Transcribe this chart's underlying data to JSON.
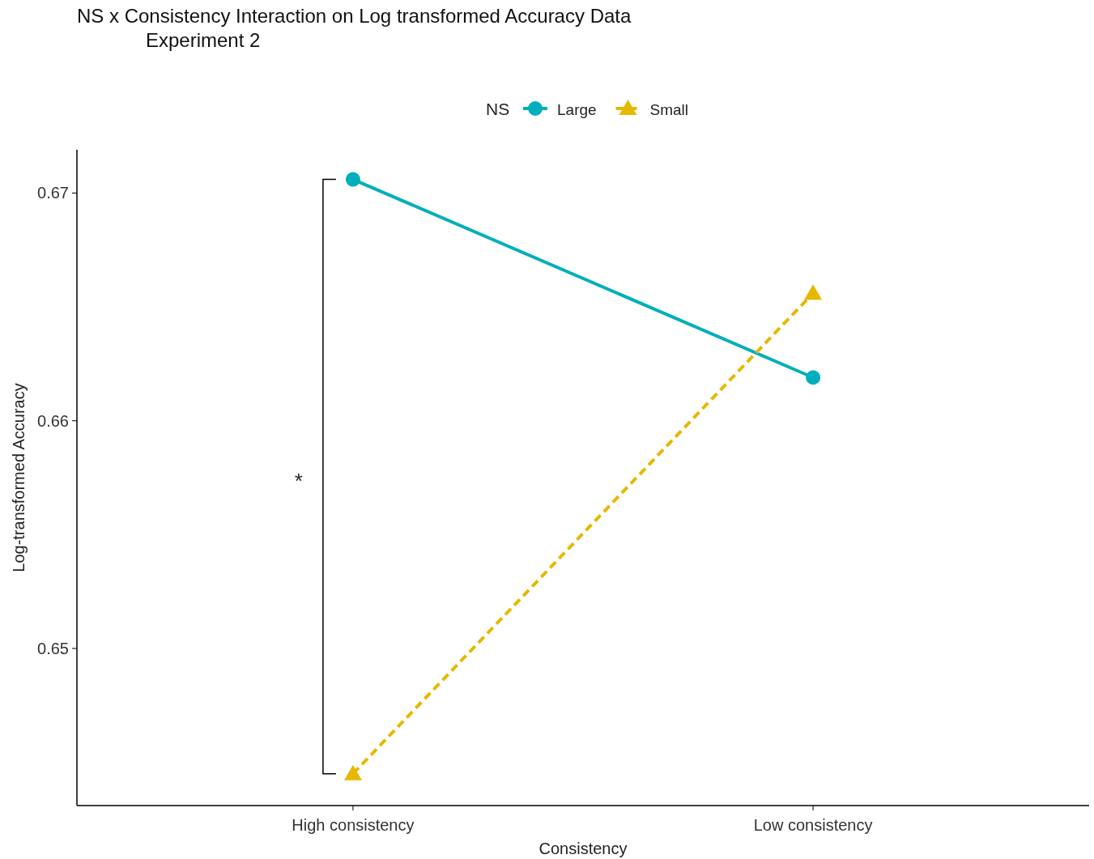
{
  "chart_data": {
    "type": "line",
    "title": "NS x Consistency Interaction on Log transformed Accuracy Data",
    "subtitle": "Experiment 2",
    "xlabel": "Consistency",
    "ylabel": "Log-transformed Accuracy",
    "legend_title": "NS",
    "categories": [
      "High consistency",
      "Low consistency"
    ],
    "series": [
      {
        "name": "Large",
        "color": "#00afbb",
        "values": [
          0.6706,
          0.6619
        ],
        "marker": "circle",
        "line_style": "solid"
      },
      {
        "name": "Small",
        "color": "#e7b800",
        "values": [
          0.6445,
          0.6656
        ],
        "marker": "triangle",
        "line_style": "dashed"
      }
    ],
    "ylim": [
      0.6431,
      0.6719
    ],
    "yticks": [
      0.65,
      0.66,
      0.67
    ],
    "annotations": [
      "*"
    ],
    "grid": false,
    "legend": "top"
  }
}
